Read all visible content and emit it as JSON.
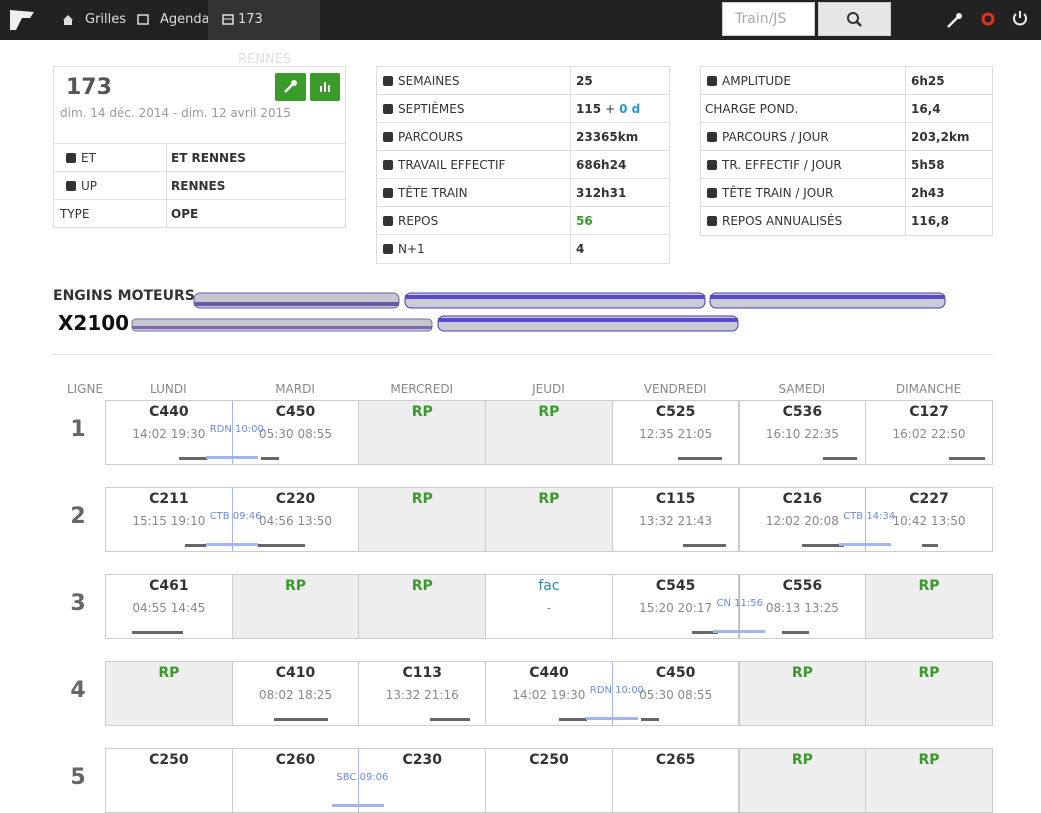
{
  "nav": {
    "items": [
      "Grilles",
      "Agenda",
      "173 RENNES"
    ],
    "search_placeholder": "Train/JS"
  },
  "card": {
    "title": "173",
    "dates": "dim. 14 déc. 2014 - dim. 12 avril 2015",
    "rows": [
      [
        "ET",
        "ET RENNES"
      ],
      [
        "UP",
        "RENNES"
      ],
      [
        "TYPE",
        "OPE"
      ]
    ]
  },
  "stats_left": [
    {
      "label": "SEMAINES",
      "value": [
        "25"
      ]
    },
    {
      "label": "SEPTIÈMES",
      "value": [
        "115",
        "+",
        "0 d"
      ]
    },
    {
      "label": "PARCOURS",
      "value": [
        "23365km"
      ]
    },
    {
      "label": "TRAVAIL EFFECTIF",
      "value": [
        "686h24"
      ]
    },
    {
      "label": "TÊTE TRAIN",
      "value": [
        "312h31"
      ]
    },
    {
      "label": "REPOS",
      "value": [
        "56"
      ]
    },
    {
      "label": "N+1",
      "value": [
        "4"
      ]
    }
  ],
  "stats_right": [
    {
      "label": "AMPLITUDE",
      "value": [
        "6h25"
      ]
    },
    {
      "label": "CHARGE POND.",
      "value": [
        "16,4"
      ]
    },
    {
      "label": "PARCOURS / JOUR",
      "value": [
        "203,2km"
      ]
    },
    {
      "label": "TR. EFFECTIF / JOUR",
      "value": [
        "5h58"
      ]
    },
    {
      "label": "TÊTE TRAIN / JOUR",
      "value": [
        "2h43"
      ]
    },
    {
      "label": "REPOS ANNUALISÉS",
      "value": [
        "116,8"
      ]
    }
  ],
  "engines": {
    "title": "ENGINS MOTEURS",
    "model": "X2100"
  },
  "grid": {
    "line_header": "LIGNE",
    "days": [
      "LUNDI",
      "MARDI",
      "MERCREDI",
      "JEUDI",
      "VENDREDI",
      "SAMEDI",
      "DIMANCHE"
    ],
    "rows": [
      {
        "line": "1",
        "cells": [
          {
            "code": "C440",
            "start": "14:02",
            "end": "19:30"
          },
          {
            "code": "C450",
            "start": "05:30",
            "end": "08:55"
          },
          {
            "code": "RP"
          },
          {
            "code": "RP"
          },
          {
            "code": "C525",
            "start": "12:35",
            "end": "21:05"
          },
          {
            "code": "C536",
            "start": "16:10",
            "end": "22:35"
          },
          {
            "code": "C127",
            "start": "16:02",
            "end": "22:50"
          }
        ],
        "transfers": [
          {
            "label": "RDN 10:00",
            "after": 0
          }
        ]
      },
      {
        "line": "2",
        "cells": [
          {
            "code": "C211",
            "start": "15:15",
            "end": "19:10"
          },
          {
            "code": "C220",
            "start": "04:56",
            "end": "13:50"
          },
          {
            "code": "RP"
          },
          {
            "code": "RP"
          },
          {
            "code": "C115",
            "start": "13:32",
            "end": "21:43"
          },
          {
            "code": "C216",
            "start": "12:02",
            "end": "20:08"
          },
          {
            "code": "C227",
            "start": "10:42",
            "end": "13:50"
          }
        ],
        "transfers": [
          {
            "label": "CTB 09:46",
            "after": 0
          },
          {
            "label": "CTB 14:34",
            "after": 5
          }
        ]
      },
      {
        "line": "3",
        "cells": [
          {
            "code": "C461",
            "start": "04:55",
            "end": "14:45"
          },
          {
            "code": "RP"
          },
          {
            "code": "RP"
          },
          {
            "code": "fac",
            "note": "-"
          },
          {
            "code": "C545",
            "start": "15:20",
            "end": "20:17"
          },
          {
            "code": "C556",
            "start": "08:13",
            "end": "13:25"
          },
          {
            "code": "RP"
          }
        ],
        "transfers": [
          {
            "label": "CN 11:56",
            "after": 4
          }
        ]
      },
      {
        "line": "4",
        "cells": [
          {
            "code": "RP"
          },
          {
            "code": "C410",
            "start": "08:02",
            "end": "18:25"
          },
          {
            "code": "C113",
            "start": "13:32",
            "end": "21:16"
          },
          {
            "code": "C440",
            "start": "14:02",
            "end": "19:30"
          },
          {
            "code": "C450",
            "start": "05:30",
            "end": "08:55"
          },
          {
            "code": "RP"
          },
          {
            "code": "RP"
          }
        ],
        "transfers": [
          {
            "label": "RDN 10:00",
            "after": 3
          }
        ]
      },
      {
        "line": "5",
        "cells": [
          {
            "code": "C250"
          },
          {
            "code": "C260"
          },
          {
            "code": "C230"
          },
          {
            "code": "C250"
          },
          {
            "code": "C265"
          },
          {
            "code": "RP"
          },
          {
            "code": "RP"
          }
        ],
        "transfers": [
          {
            "label": "SBC 09:06",
            "after": 1
          }
        ]
      }
    ]
  }
}
